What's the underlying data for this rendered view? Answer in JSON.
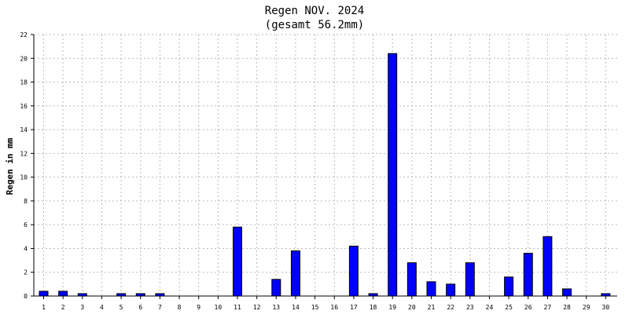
{
  "chart_data": {
    "type": "bar",
    "title": "Regen NOV. 2024",
    "subtitle": "(gesamt 56.2mm)",
    "ylabel": "Regen in mm",
    "xlabel": "",
    "ylim": [
      0,
      22
    ],
    "yticks": [
      0,
      2,
      4,
      6,
      8,
      10,
      12,
      14,
      16,
      18,
      20,
      22
    ],
    "grid": true,
    "categories": [
      "1",
      "2",
      "3",
      "4",
      "5",
      "6",
      "7",
      "8",
      "9",
      "10",
      "11",
      "12",
      "13",
      "14",
      "15",
      "16",
      "17",
      "18",
      "19",
      "20",
      "21",
      "22",
      "23",
      "24",
      "25",
      "26",
      "27",
      "28",
      "29",
      "30"
    ],
    "values": [
      0.4,
      0.4,
      0.2,
      0,
      0.2,
      0.2,
      0.2,
      0,
      0,
      0,
      5.8,
      0,
      1.4,
      3.8,
      0,
      0,
      4.2,
      0.2,
      20.4,
      2.8,
      1.2,
      1.0,
      2.8,
      0,
      1.6,
      3.6,
      5.0,
      0.6,
      0,
      0.2
    ],
    "bar_color": "#0000ff"
  }
}
